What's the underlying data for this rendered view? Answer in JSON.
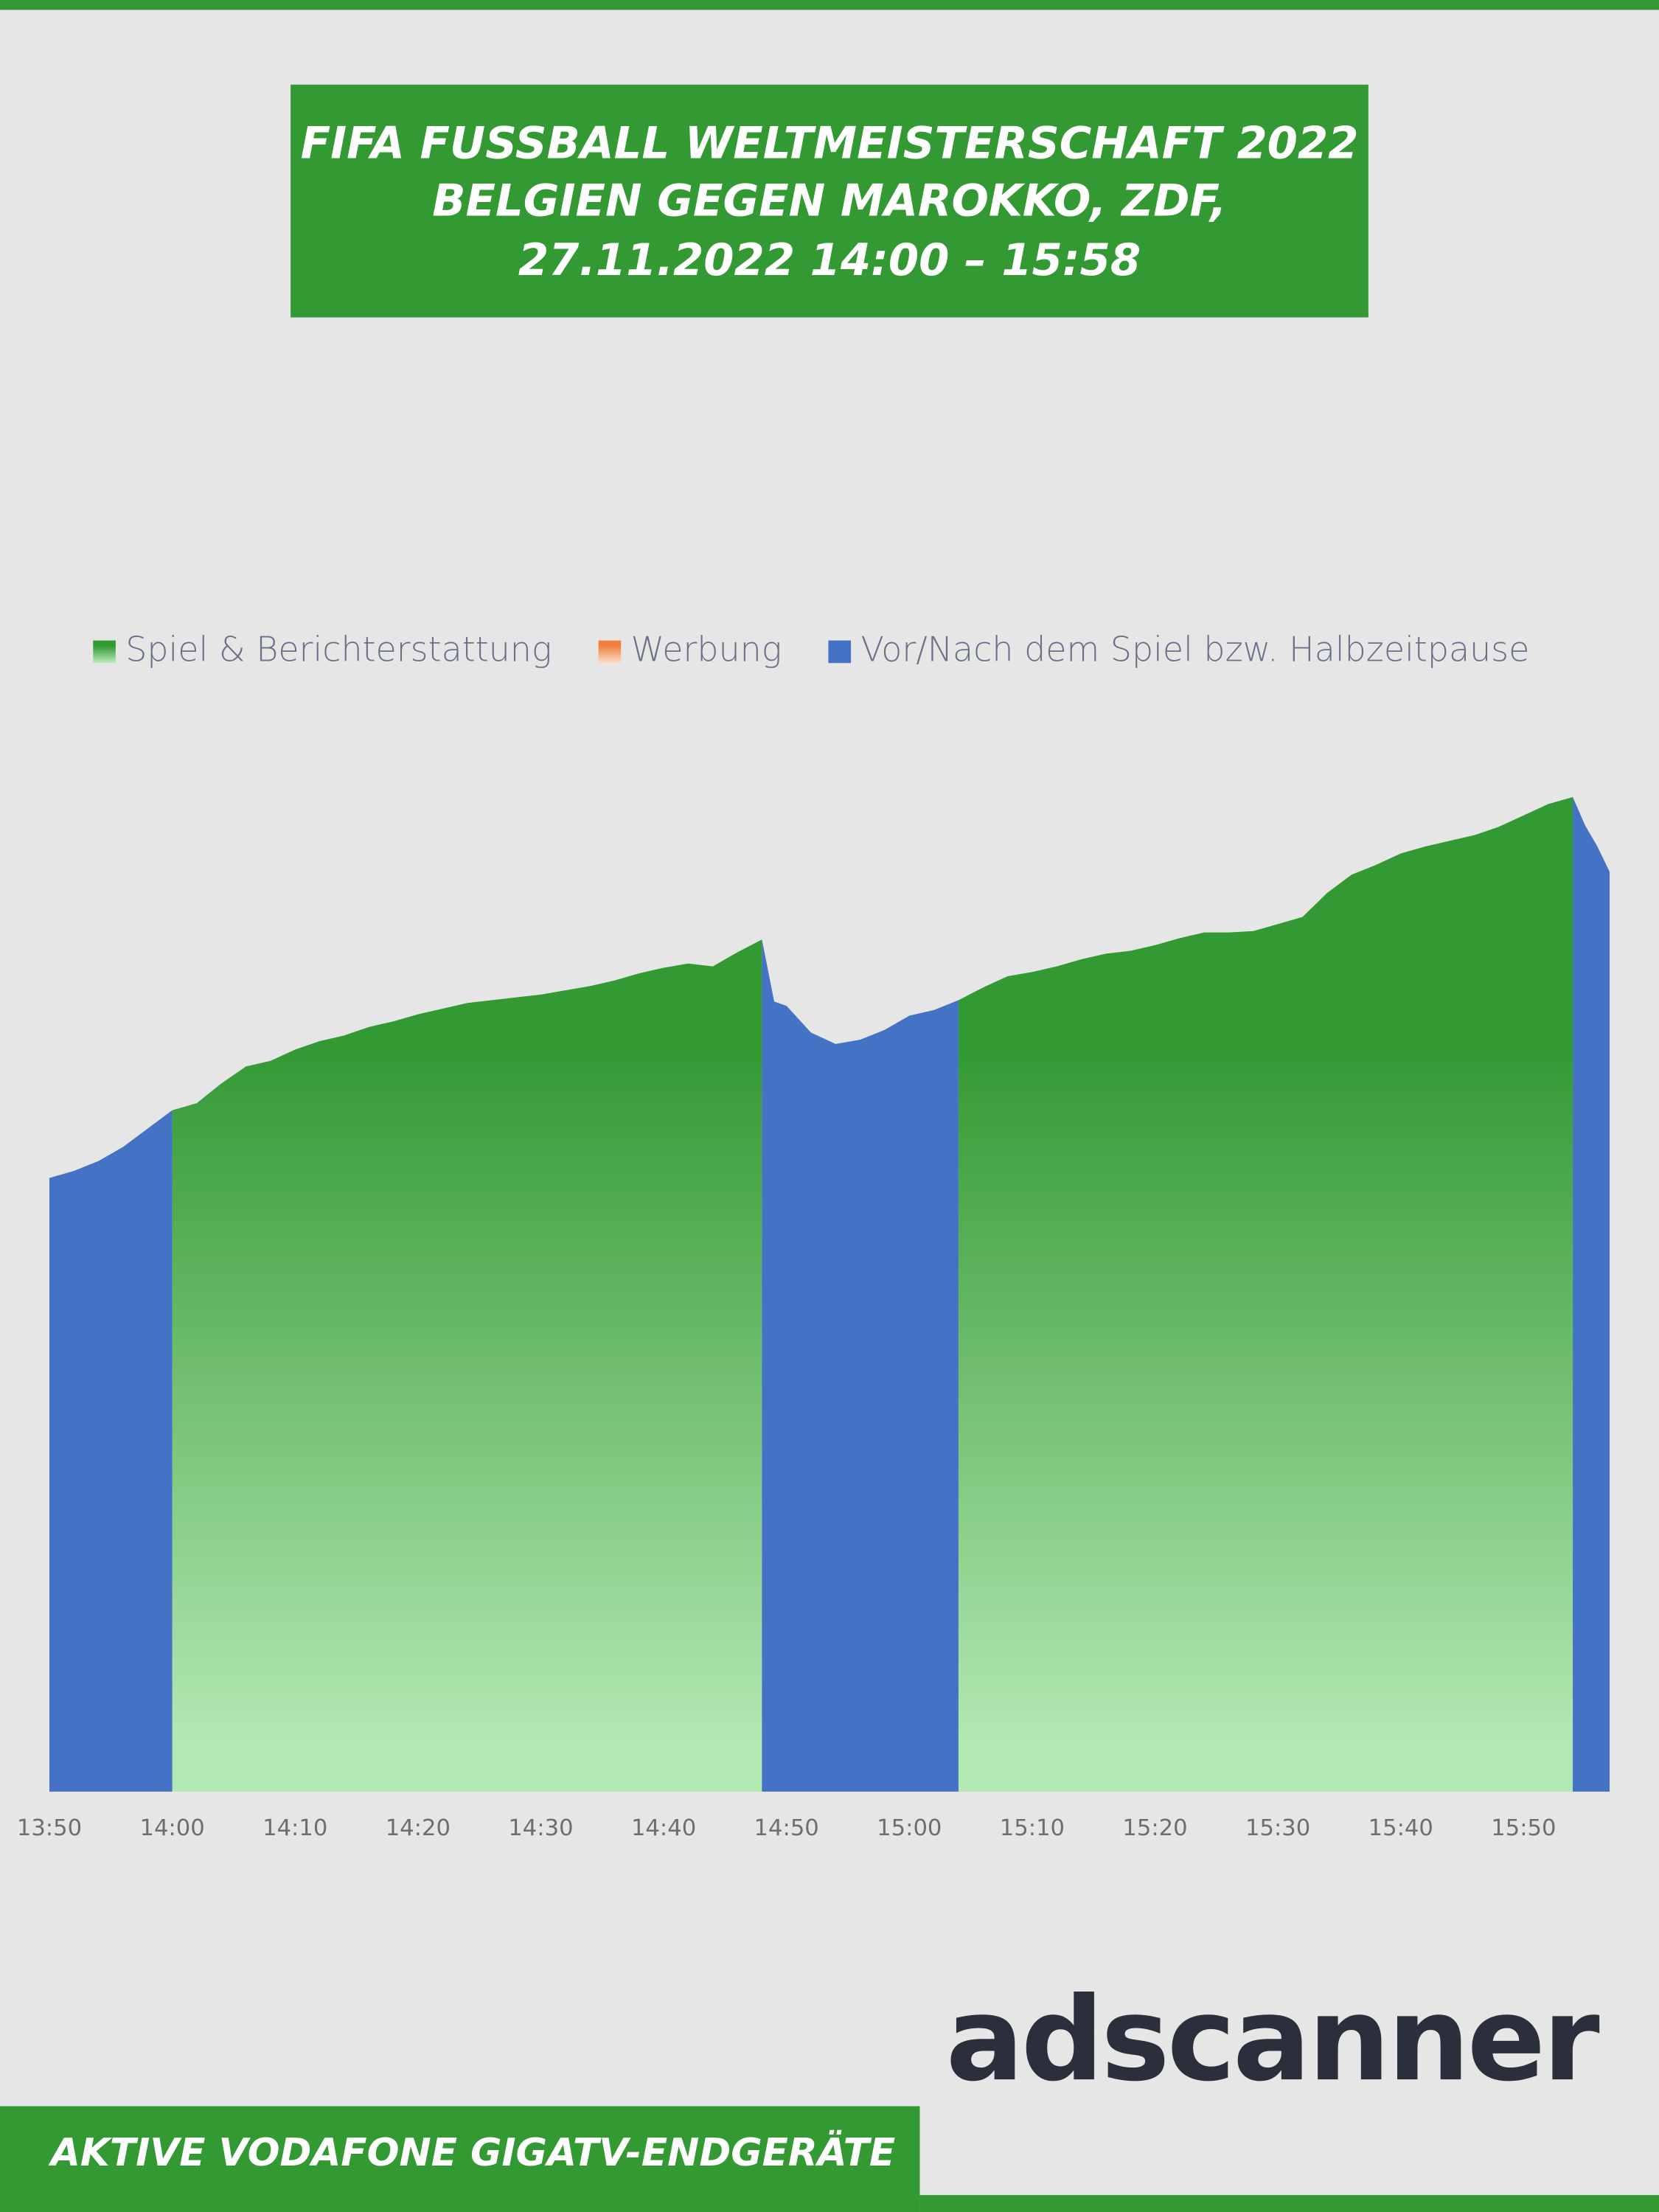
{
  "chart_data": {
    "type": "area",
    "title": [
      "FIFA FUSSBALL WELTMEISTERSCHAFT 2022",
      "BELGIEN GEGEN MAROKKO, ZDF,",
      "27.11.2022 14:00 – 15:58"
    ],
    "x": [
      "13:50",
      "13:52",
      "13:54",
      "13:56",
      "13:58",
      "14:00",
      "14:02",
      "14:04",
      "14:06",
      "14:08",
      "14:10",
      "14:12",
      "14:14",
      "14:16",
      "14:18",
      "14:20",
      "14:22",
      "14:24",
      "14:26",
      "14:28",
      "14:30",
      "14:32",
      "14:34",
      "14:36",
      "14:38",
      "14:40",
      "14:42",
      "14:44",
      "14:46",
      "14:48",
      "14:49",
      "14:50",
      "14:52",
      "14:54",
      "14:56",
      "14:58",
      "15:00",
      "15:02",
      "15:04",
      "15:06",
      "15:08",
      "15:10",
      "15:12",
      "15:14",
      "15:16",
      "15:18",
      "15:20",
      "15:22",
      "15:24",
      "15:26",
      "15:28",
      "15:30",
      "15:32",
      "15:34",
      "15:36",
      "15:38",
      "15:40",
      "15:42",
      "15:44",
      "15:46",
      "15:48",
      "15:50",
      "15:52",
      "15:54",
      "15:55",
      "15:56",
      "15:57"
    ],
    "series": [
      {
        "name": "Spiel & Berichterstattung",
        "color": "#339933",
        "gradient": [
          "#339933",
          "#b3e8b3"
        ],
        "values": [
          null,
          null,
          null,
          null,
          null,
          483,
          488,
          502,
          514,
          518,
          526,
          532,
          536,
          542,
          546,
          551,
          555,
          559,
          561,
          563,
          565,
          568,
          571,
          575,
          580,
          584,
          587,
          585,
          595,
          604,
          null,
          null,
          null,
          null,
          null,
          null,
          null,
          null,
          561,
          570,
          578,
          581,
          585,
          590,
          594,
          596,
          600,
          605,
          609,
          609,
          610,
          615,
          620,
          637,
          650,
          657,
          665,
          670,
          674,
          678,
          684,
          692,
          700,
          705,
          null,
          null,
          null
        ]
      },
      {
        "name": "Werbung",
        "color": "#f08040",
        "gradient": [
          "#f08040",
          "#fcd9c0"
        ],
        "values": [
          null,
          null,
          null,
          null,
          null,
          null,
          null,
          null,
          null,
          null,
          null,
          null,
          null,
          null,
          null,
          null,
          null,
          null,
          null,
          null,
          null,
          null,
          null,
          null,
          null,
          null,
          null,
          null,
          null,
          null,
          null,
          null,
          null,
          null,
          null,
          null,
          null,
          null,
          null,
          null,
          null,
          null,
          null,
          null,
          null,
          null,
          null,
          null,
          null,
          null,
          null,
          null,
          null,
          null,
          null,
          null,
          null,
          null,
          null,
          null,
          null,
          null,
          null,
          null,
          null,
          null,
          null
        ]
      },
      {
        "name": "Vor/Nach dem Spiel bzw. Halbzeitpause",
        "color": "#4472c4",
        "values": [
          435,
          440,
          447,
          457,
          470,
          483,
          null,
          null,
          null,
          null,
          null,
          null,
          null,
          null,
          null,
          null,
          null,
          null,
          null,
          null,
          null,
          null,
          null,
          null,
          null,
          null,
          null,
          null,
          null,
          604,
          560,
          557,
          538,
          530,
          533,
          540,
          550,
          554,
          561,
          null,
          null,
          null,
          null,
          null,
          null,
          null,
          null,
          null,
          null,
          null,
          null,
          null,
          null,
          null,
          null,
          null,
          null,
          null,
          null,
          null,
          null,
          null,
          null,
          705,
          685,
          670,
          652
        ]
      }
    ],
    "xlim": [
      "13:50",
      "15:57"
    ],
    "xticks": [
      "13:50",
      "14:00",
      "14:10",
      "14:20",
      "14:30",
      "14:40",
      "14:50",
      "15:00",
      "15:10",
      "15:20",
      "15:30",
      "15:40",
      "15:50"
    ],
    "ylim": [
      0,
      800
    ],
    "legend": "top",
    "footer": "AKTIVE VODAFONE GIGATV-ENDGERÄTE",
    "logo": "adscanner"
  }
}
